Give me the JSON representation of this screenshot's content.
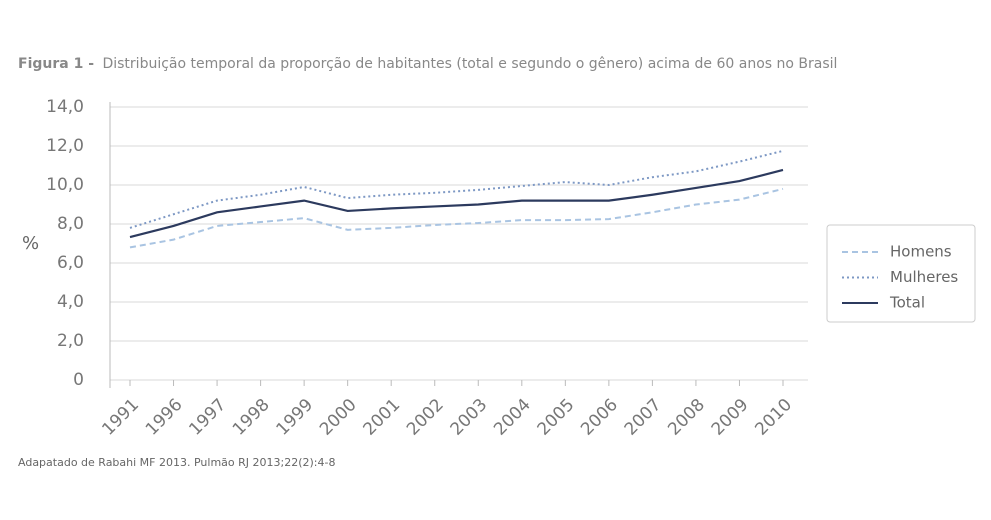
{
  "chart_data": {
    "type": "line",
    "figure_label": "Figura 1 -",
    "title": "Distribuição temporal da proporção de habitantes (total e segundo o gênero) acima de 60 anos no Brasil",
    "ylabel": "%",
    "source": "Adapatado de Rabahi MF 2013. Pulmão RJ 2013;22(2):4-8",
    "categories": [
      "1991",
      "1996",
      "1997",
      "1998",
      "1999",
      "2000",
      "2001",
      "2002",
      "2003",
      "2004",
      "2005",
      "2006",
      "2007",
      "2008",
      "2009",
      "2010"
    ],
    "series": [
      {
        "name": "Homens",
        "color": "#a9c4e2",
        "dash": "dashed",
        "values": [
          6.8,
          7.2,
          7.9,
          8.1,
          8.3,
          7.7,
          7.8,
          7.95,
          8.05,
          8.2,
          8.2,
          8.25,
          8.6,
          9.0,
          9.25,
          9.8
        ]
      },
      {
        "name": "Mulheres",
        "color": "#7d98c4",
        "dash": "dotted",
        "values": [
          7.8,
          8.5,
          9.2,
          9.5,
          9.9,
          9.33,
          9.5,
          9.6,
          9.75,
          9.95,
          10.15,
          10.0,
          10.4,
          10.7,
          11.2,
          11.75
        ]
      },
      {
        "name": "Total",
        "color": "#2c3a5e",
        "dash": "solid",
        "values": [
          7.33,
          7.9,
          8.6,
          8.9,
          9.2,
          8.67,
          8.8,
          8.9,
          9.0,
          9.2,
          9.2,
          9.2,
          9.5,
          9.85,
          10.2,
          10.77
        ]
      }
    ],
    "ylim": [
      0,
      14
    ],
    "yticks": [
      0,
      {
        "value": 2,
        "label": "2,0"
      },
      {
        "value": 4,
        "label": "4,0"
      },
      {
        "value": 6,
        "label": "6,0"
      },
      {
        "value": 8,
        "label": "8,0"
      },
      {
        "value": 10,
        "label": "10,0"
      },
      {
        "value": 12,
        "label": "12,0"
      },
      {
        "value": 14,
        "label": "14,0"
      }
    ],
    "grid": true,
    "legend": "right"
  }
}
